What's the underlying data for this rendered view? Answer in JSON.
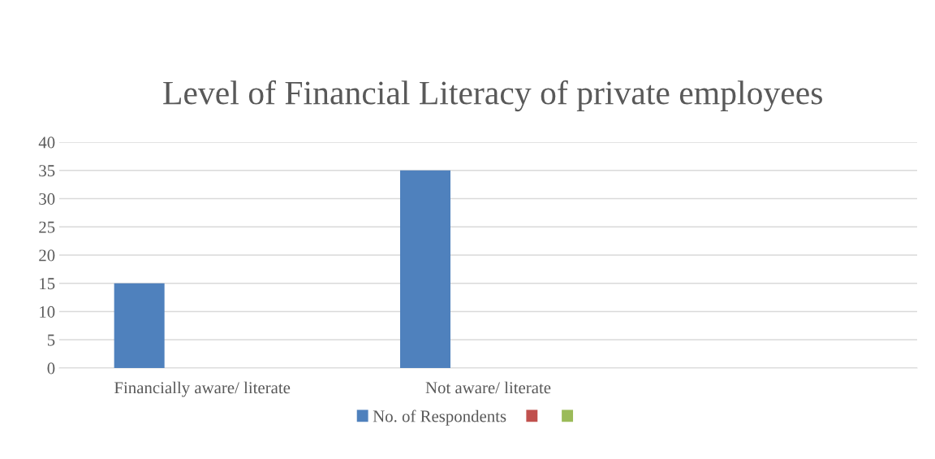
{
  "chart_data": {
    "type": "bar",
    "title": "Level of Financial Literacy of private employees",
    "categories": [
      "Financially aware/ literate",
      "Not aware/ literate",
      null
    ],
    "series": [
      {
        "name": "No. of Respondents",
        "color": "#4f81bd",
        "values": [
          15,
          35,
          null
        ]
      },
      {
        "color": "#c0504d",
        "values": [
          null,
          null,
          null
        ]
      },
      {
        "color": "#9bbb59",
        "values": [
          null,
          null,
          null
        ]
      }
    ],
    "ylim": [
      0,
      40
    ],
    "yticks": [
      0,
      5,
      10,
      15,
      20,
      25,
      30,
      35,
      40
    ],
    "grid": "y",
    "legend": "bottom"
  }
}
